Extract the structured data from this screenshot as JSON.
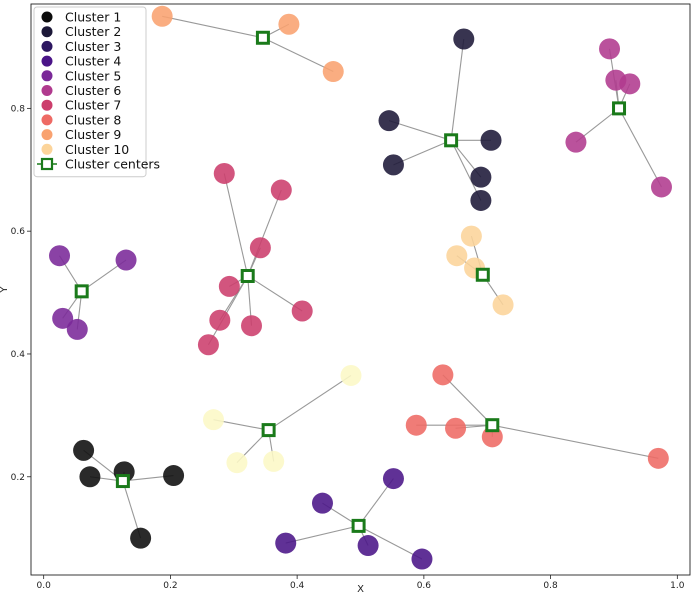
{
  "chart_data": {
    "type": "scatter",
    "title": "",
    "xlabel": "X",
    "ylabel": "Y",
    "xlim": [
      -0.02,
      1.02
    ],
    "ylim": [
      0.04,
      0.97
    ],
    "xticks": [
      "0.0",
      "0.2",
      "0.4",
      "0.6",
      "0.8",
      "1.0"
    ],
    "yticks": [
      "0.2",
      "0.4",
      "0.6",
      "0.8"
    ],
    "legend_position": "top-left",
    "center_color": "#1a7a1a",
    "line_color": "#999999",
    "series": [
      {
        "name": "Cluster 1",
        "color": "#0c0c0c",
        "center": [
          0.125,
          0.193
        ],
        "points": [
          [
            0.063,
            0.243
          ],
          [
            0.073,
            0.2
          ],
          [
            0.127,
            0.208
          ],
          [
            0.205,
            0.202
          ],
          [
            0.153,
            0.1
          ]
        ]
      },
      {
        "name": "Cluster 2",
        "color": "#1c1838",
        "center": [
          0.643,
          0.748
        ],
        "points": [
          [
            0.663,
            0.913
          ],
          [
            0.545,
            0.78
          ],
          [
            0.552,
            0.708
          ],
          [
            0.706,
            0.748
          ],
          [
            0.69,
            0.688
          ],
          [
            0.69,
            0.65
          ]
        ]
      },
      {
        "name": "Cluster 3",
        "color": "#2c1660",
        "center": [
          0.643,
          0.748
        ],
        "points": []
      },
      {
        "name": "Cluster 4",
        "color": "#4a1488",
        "center": [
          0.497,
          0.12
        ],
        "points": [
          [
            0.44,
            0.157
          ],
          [
            0.552,
            0.197
          ],
          [
            0.382,
            0.092
          ],
          [
            0.512,
            0.088
          ],
          [
            0.597,
            0.066
          ]
        ]
      },
      {
        "name": "Cluster 5",
        "color": "#7a2898",
        "center": [
          0.06,
          0.502
        ],
        "points": [
          [
            0.025,
            0.56
          ],
          [
            0.13,
            0.553
          ],
          [
            0.03,
            0.458
          ],
          [
            0.053,
            0.44
          ]
        ]
      },
      {
        "name": "Cluster 6",
        "color": "#b03a8e",
        "center": [
          0.908,
          0.8
        ],
        "points": [
          [
            0.893,
            0.897
          ],
          [
            0.903,
            0.846
          ],
          [
            0.925,
            0.84
          ],
          [
            0.84,
            0.745
          ],
          [
            0.975,
            0.672
          ]
        ]
      },
      {
        "name": "Cluster 7",
        "color": "#cc3e6c",
        "center": [
          0.322,
          0.527
        ],
        "points": [
          [
            0.285,
            0.694
          ],
          [
            0.375,
            0.667
          ],
          [
            0.342,
            0.573
          ],
          [
            0.293,
            0.51
          ],
          [
            0.278,
            0.455
          ],
          [
            0.26,
            0.415
          ],
          [
            0.328,
            0.446
          ],
          [
            0.408,
            0.47
          ]
        ]
      },
      {
        "name": "Cluster 8",
        "color": "#ee6a64",
        "center": [
          0.708,
          0.284
        ],
        "points": [
          [
            0.63,
            0.366
          ],
          [
            0.588,
            0.284
          ],
          [
            0.65,
            0.279
          ],
          [
            0.708,
            0.265
          ],
          [
            0.97,
            0.23
          ]
        ]
      },
      {
        "name": "Cluster 9",
        "color": "#f9a270",
        "center": [
          0.346,
          0.915
        ],
        "points": [
          [
            0.187,
            0.95
          ],
          [
            0.387,
            0.937
          ],
          [
            0.457,
            0.86
          ]
        ]
      },
      {
        "name": "Cluster 10",
        "color": "#fcd49a",
        "center": [
          0.693,
          0.529
        ],
        "points": [
          [
            0.675,
            0.592
          ],
          [
            0.652,
            0.56
          ],
          [
            0.68,
            0.54
          ],
          [
            0.725,
            0.48
          ]
        ]
      },
      {
        "name": "",
        "color": "#fcf8c6",
        "center": [
          0.355,
          0.276
        ],
        "points": [
          [
            0.485,
            0.365
          ],
          [
            0.268,
            0.293
          ],
          [
            0.305,
            0.223
          ],
          [
            0.363,
            0.225
          ]
        ]
      }
    ],
    "center_legend_label": "Cluster centers"
  }
}
